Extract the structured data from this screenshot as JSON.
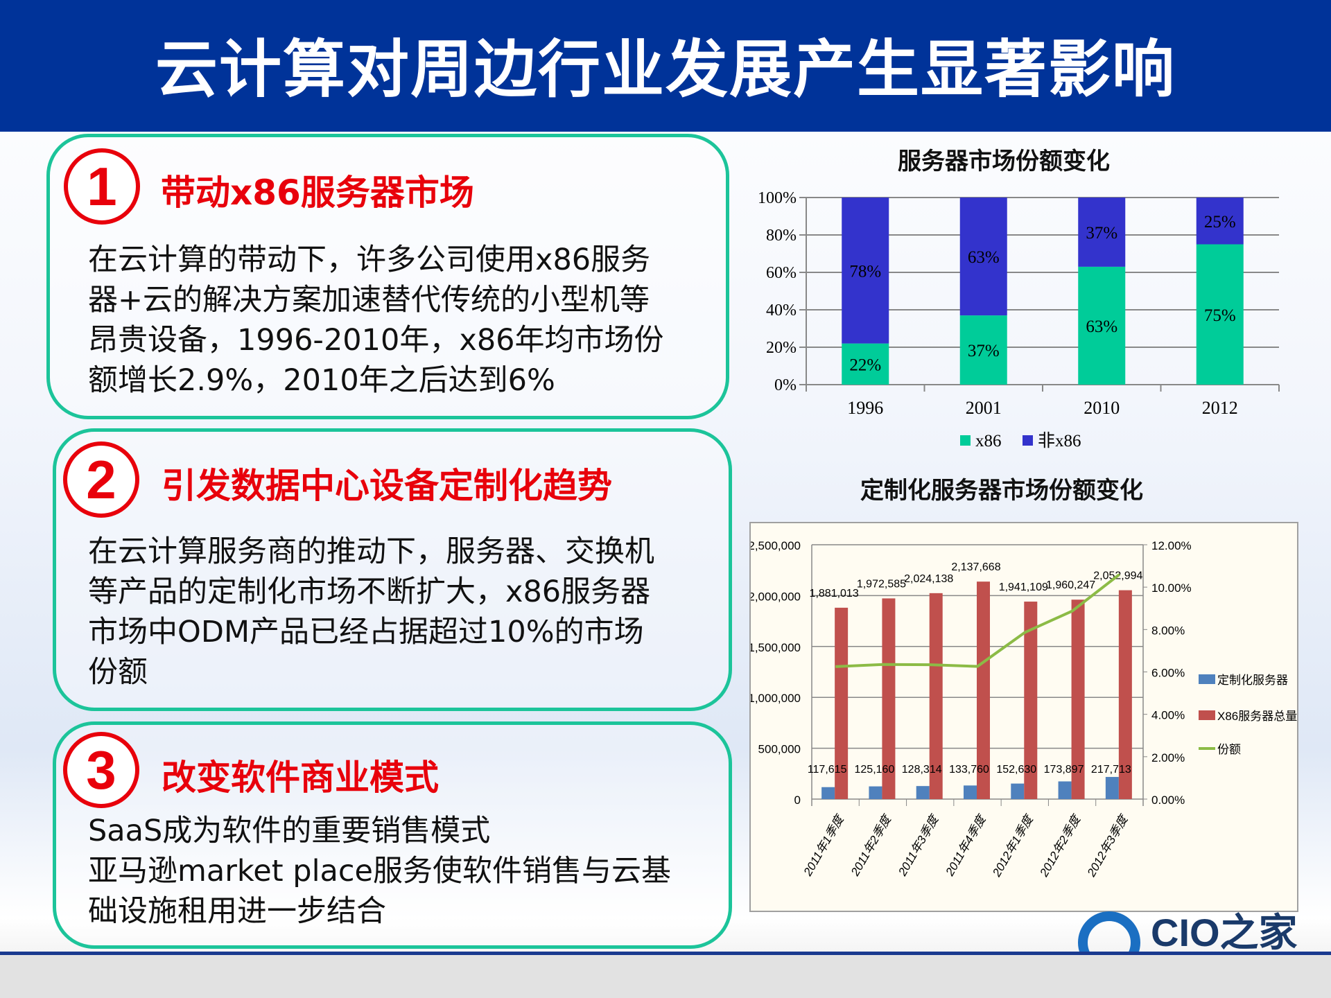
{
  "title": "云计算对周边行业发展产生显著影响",
  "sections": [
    {
      "num": "1",
      "heading": "带动x86服务器市场",
      "body": [
        "在云计算的带动下，许多公司使用x86服务",
        "器+云的解决方案加速替代传统的小型机等",
        "昂贵设备，1996-2010年，x86年均市场份",
        "额增长2.9%，2010年之后达到6%"
      ]
    },
    {
      "num": "2",
      "heading": "引发数据中心设备定制化趋势",
      "body": [
        "在云计算服务商的推动下，服务器、交换机",
        "等产品的定制化市场不断扩大，x86服务器",
        "市场中ODM产品已经占据超过10%的市场",
        "份额"
      ]
    },
    {
      "num": "3",
      "heading": "改变软件商业模式",
      "body": [
        "SaaS成为软件的重要销售模式",
        "亚马逊market place服务使软件销售与云基",
        "础设施租用进一步结合"
      ]
    }
  ],
  "logo": {
    "text": "CIO之家",
    "url": "www.ciozj.com"
  },
  "chart_data": [
    {
      "type": "bar",
      "stacked": true,
      "title": "服务器市场份额变化",
      "categories": [
        "1996",
        "2001",
        "2010",
        "2012"
      ],
      "series": [
        {
          "name": "x86",
          "values": [
            22,
            37,
            63,
            75
          ],
          "color": "#00cc99"
        },
        {
          "name": "非x86",
          "values": [
            78,
            63,
            37,
            25
          ],
          "color": "#3333cc"
        }
      ],
      "ylim": [
        0,
        100
      ],
      "yticks": [
        "0%",
        "20%",
        "40%",
        "60%",
        "80%",
        "100%"
      ],
      "grid": true,
      "legend": "bottom"
    },
    {
      "type": "bar",
      "title": "定制化服务器市场份额变化",
      "categories": [
        "2011年1季度",
        "2011年2季度",
        "2011年3季度",
        "2011年4季度",
        "2012年1季度",
        "2012年2季度",
        "2012年3季度"
      ],
      "series": [
        {
          "name": "定制化服务器",
          "type": "bar",
          "values": [
            117615,
            125160,
            128314,
            133760,
            152630,
            173897,
            217713
          ],
          "labels": [
            "117,615",
            "125,160",
            "128,314",
            "133,760",
            "152,630",
            "173,897",
            "217,713"
          ],
          "color": "#4f81bd"
        },
        {
          "name": "X86服务器总量",
          "type": "bar",
          "values": [
            1881013,
            1972585,
            2024138,
            2137668,
            1941109,
            1960247,
            2052994
          ],
          "labels": [
            "1,881,013",
            "1,972,585",
            "2,024,138",
            "2,137,668",
            "1,941,109",
            "1,960,247",
            "2,052,994"
          ],
          "color": "#c0504d"
        },
        {
          "name": "份额",
          "type": "line",
          "axis": "right",
          "values": [
            6.25,
            6.35,
            6.34,
            6.26,
            7.86,
            8.87,
            10.6
          ],
          "color": "#8cbb46"
        }
      ],
      "ylim": [
        0,
        2500000
      ],
      "yticks": [
        "0",
        "500,000",
        "1,000,000",
        "1,500,000",
        "2,000,000",
        "2,500,000"
      ],
      "y2lim": [
        0,
        12
      ],
      "y2ticks": [
        "0.00%",
        "2.00%",
        "4.00%",
        "6.00%",
        "8.00%",
        "10.00%",
        "12.00%"
      ],
      "grid": true,
      "legend": "right"
    }
  ]
}
